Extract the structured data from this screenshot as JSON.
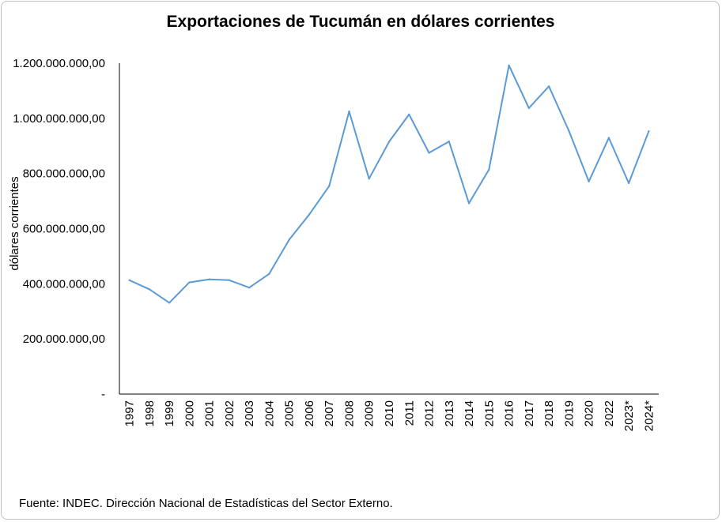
{
  "chart_data": {
    "type": "line",
    "title": "Exportaciones de Tucumán en dólares corrientes",
    "xlabel": "",
    "ylabel": "dólares corrientes",
    "ylim": [
      0,
      1200000000
    ],
    "yticks": [
      {
        "value": 0,
        "label": "-"
      },
      {
        "value": 200000000,
        "label": "200.000.000,00"
      },
      {
        "value": 400000000,
        "label": "400.000.000,00"
      },
      {
        "value": 600000000,
        "label": "600.000.000,00"
      },
      {
        "value": 800000000,
        "label": "800.000.000,00"
      },
      {
        "value": 1000000000,
        "label": "1.000.000.000,00"
      },
      {
        "value": 1200000000,
        "label": "1.200.000.000,00"
      }
    ],
    "grid": false,
    "legend": "none",
    "line_color": "#5b9bd5",
    "categories": [
      "1997",
      "1998",
      "1999",
      "2000",
      "2001",
      "2002",
      "2003",
      "2004",
      "2005",
      "2006",
      "2007",
      "2008",
      "2009",
      "2010",
      "2011",
      "2012",
      "2013",
      "2014",
      "2015",
      "2016",
      "2017",
      "2018",
      "2019",
      "2020",
      "2022",
      "2023*",
      "2024*"
    ],
    "series": [
      {
        "name": "Exportaciones",
        "values": [
          413000000,
          380000000,
          331000000,
          405000000,
          416000000,
          413000000,
          386000000,
          436000000,
          560000000,
          651000000,
          754000000,
          1025000000,
          781000000,
          915000000,
          1014000000,
          875000000,
          916000000,
          692000000,
          814000000,
          1192000000,
          1037000000,
          1116000000,
          955000000,
          771000000,
          929000000,
          765000000,
          953000000
        ]
      }
    ]
  },
  "source_note": "Fuente: INDEC. Dirección Nacional de Estadísticas del Sector Externo."
}
